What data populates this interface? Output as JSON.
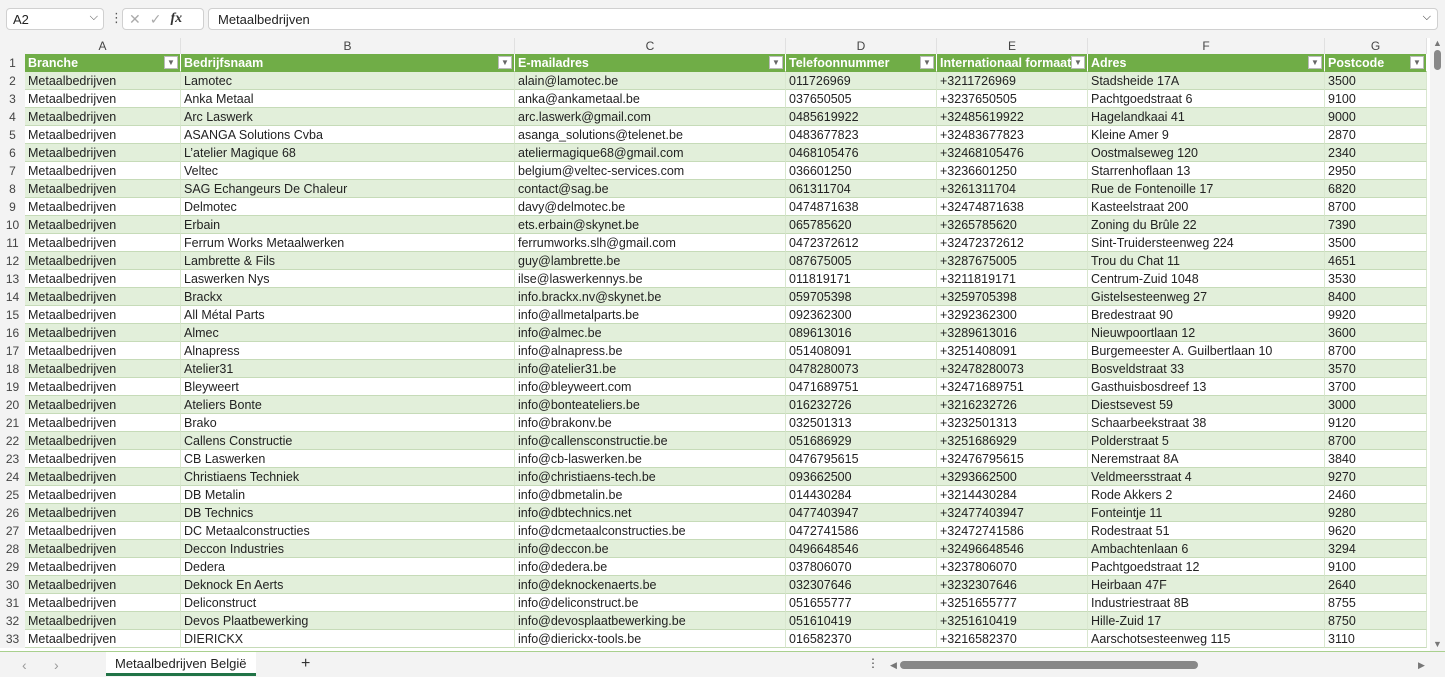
{
  "formula_bar": {
    "name_box": "A2",
    "formula": "Metaalbedrijven"
  },
  "columns": [
    "A",
    "B",
    "C",
    "D",
    "E",
    "F",
    "G"
  ],
  "headers": [
    "Branche",
    "Bedrijfsnaam",
    "E-mailadres",
    "Telefoonnummer",
    "Internationaal formaat",
    "Adres",
    "Postcode"
  ],
  "rows": [
    [
      "Metaalbedrijven",
      "Lamotec",
      "alain@lamotec.be",
      "011726969",
      "+3211726969",
      "Stadsheide 17A",
      "3500"
    ],
    [
      "Metaalbedrijven",
      "Anka Metaal",
      "anka@ankametaal.be",
      "037650505",
      "+3237650505",
      "Pachtgoedstraat 6",
      "9100"
    ],
    [
      "Metaalbedrijven",
      "Arc Laswerk",
      "arc.laswerk@gmail.com",
      "0485619922",
      "+32485619922",
      "Hagelandkaai 41",
      "9000"
    ],
    [
      "Metaalbedrijven",
      "ASANGA Solutions Cvba",
      "asanga_solutions@telenet.be",
      "0483677823",
      "+32483677823",
      "Kleine Amer 9",
      "2870"
    ],
    [
      "Metaalbedrijven",
      "L’atelier Magique 68",
      "ateliermagique68@gmail.com",
      "0468105476",
      "+32468105476",
      "Oostmalseweg 120",
      "2340"
    ],
    [
      "Metaalbedrijven",
      "Veltec",
      "belgium@veltec-services.com",
      "036601250",
      "+3236601250",
      "Starrenhoflaan 13",
      "2950"
    ],
    [
      "Metaalbedrijven",
      "SAG Echangeurs De Chaleur",
      "contact@sag.be",
      "061311704",
      "+3261311704",
      "Rue de Fontenoille 17",
      "6820"
    ],
    [
      "Metaalbedrijven",
      "Delmotec",
      "davy@delmotec.be",
      "0474871638",
      "+32474871638",
      "Kasteelstraat 200",
      "8700"
    ],
    [
      "Metaalbedrijven",
      "Erbain",
      "ets.erbain@skynet.be",
      "065785620",
      "+3265785620",
      "Zoning du Brûle 22",
      "7390"
    ],
    [
      "Metaalbedrijven",
      "Ferrum Works Metaalwerken",
      "ferrumworks.slh@gmail.com",
      "0472372612",
      "+32472372612",
      "Sint-Truidersteenweg 224",
      "3500"
    ],
    [
      "Metaalbedrijven",
      "Lambrette & Fils",
      "guy@lambrette.be",
      "087675005",
      "+3287675005",
      "Trou du Chat 11",
      "4651"
    ],
    [
      "Metaalbedrijven",
      "Laswerken Nys",
      "ilse@laswerkennys.be",
      "011819171",
      "+3211819171",
      "Centrum-Zuid 1048",
      "3530"
    ],
    [
      "Metaalbedrijven",
      "Brackx",
      "info.brackx.nv@skynet.be",
      "059705398",
      "+3259705398",
      "Gistelsesteenweg 27",
      "8400"
    ],
    [
      "Metaalbedrijven",
      "All Métal Parts",
      "info@allmetalparts.be",
      "092362300",
      "+3292362300",
      "Bredestraat 90",
      "9920"
    ],
    [
      "Metaalbedrijven",
      "Almec",
      "info@almec.be",
      "089613016",
      "+3289613016",
      "Nieuwpoortlaan 12",
      "3600"
    ],
    [
      "Metaalbedrijven",
      "Alnapress",
      "info@alnapress.be",
      "051408091",
      "+3251408091",
      "Burgemeester A. Guilbertlaan 10",
      "8700"
    ],
    [
      "Metaalbedrijven",
      "Atelier31",
      "info@atelier31.be",
      "0478280073",
      "+32478280073",
      "Bosveldstraat 33",
      "3570"
    ],
    [
      "Metaalbedrijven",
      "Bleyweert",
      "info@bleyweert.com",
      "0471689751",
      "+32471689751",
      "Gasthuisbosdreef 13",
      "3700"
    ],
    [
      "Metaalbedrijven",
      "Ateliers Bonte",
      "info@bonteateliers.be",
      "016232726",
      "+3216232726",
      "Diestsevest 59",
      "3000"
    ],
    [
      "Metaalbedrijven",
      "Brako",
      "info@brakonv.be",
      "032501313",
      "+3232501313",
      "Schaarbeekstraat 38",
      "9120"
    ],
    [
      "Metaalbedrijven",
      "Callens Constructie",
      "info@callensconstructie.be",
      "051686929",
      "+3251686929",
      "Polderstraat 5",
      "8700"
    ],
    [
      "Metaalbedrijven",
      "CB Laswerken",
      "info@cb-laswerken.be",
      "0476795615",
      "+32476795615",
      "Neremstraat 8A",
      "3840"
    ],
    [
      "Metaalbedrijven",
      "Christiaens Techniek",
      "info@christiaens-tech.be",
      "093662500",
      "+3293662500",
      "Veldmeersstraat 4",
      "9270"
    ],
    [
      "Metaalbedrijven",
      "DB Metalin",
      "info@dbmetalin.be",
      "014430284",
      "+3214430284",
      "Rode Akkers 2",
      "2460"
    ],
    [
      "Metaalbedrijven",
      "DB Technics",
      "info@dbtechnics.net",
      "0477403947",
      "+32477403947",
      "Fonteintje 11",
      "9280"
    ],
    [
      "Metaalbedrijven",
      "DC Metaalconstructies",
      "info@dcmetaalconstructies.be",
      "0472741586",
      "+32472741586",
      "Rodestraat 51",
      "9620"
    ],
    [
      "Metaalbedrijven",
      "Deccon Industries",
      "info@deccon.be",
      "0496648546",
      "+32496648546",
      "Ambachtenlaan 6",
      "3294"
    ],
    [
      "Metaalbedrijven",
      "Dedera",
      "info@dedera.be",
      "037806070",
      "+3237806070",
      "Pachtgoedstraat 12",
      "9100"
    ],
    [
      "Metaalbedrijven",
      "Deknock En Aerts",
      "info@deknockenaerts.be",
      "032307646",
      "+3232307646",
      "Heirbaan 47F",
      "2640"
    ],
    [
      "Metaalbedrijven",
      "Deliconstruct",
      "info@deliconstruct.be",
      "051655777",
      "+3251655777",
      "Industriestraat 8B",
      "8755"
    ],
    [
      "Metaalbedrijven",
      "Devos Plaatbewerking",
      "info@devosplaatbewerking.be",
      "051610419",
      "+3251610419",
      "Hille-Zuid 17",
      "8750"
    ],
    [
      "Metaalbedrijven",
      "DIERICKX",
      "info@dierickx-tools.be",
      "016582370",
      "+3216582370",
      "Aarschotsesteenweg 115",
      "3110"
    ]
  ],
  "sheet_tabs": [
    {
      "label": "Metaalbedrijven België",
      "active": true
    }
  ],
  "colors": {
    "header": "#70ad47",
    "band": "#e2efda",
    "active_tab": "#217346"
  }
}
